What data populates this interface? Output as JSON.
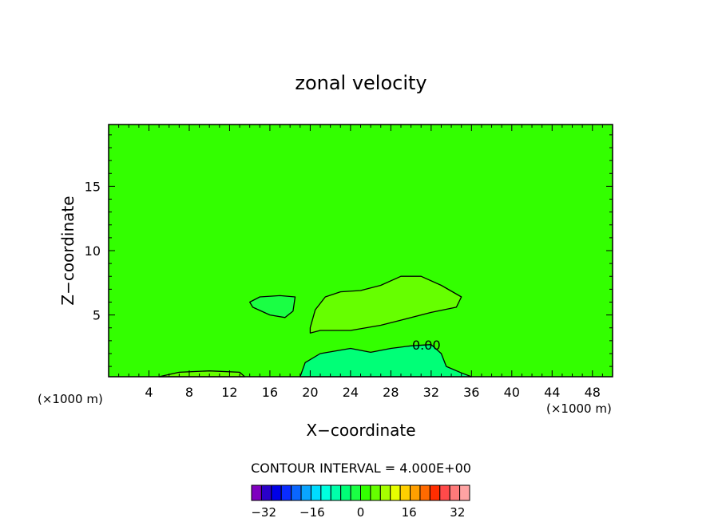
{
  "chart_data": {
    "type": "heatmap",
    "title": "zonal velocity",
    "xlabel": "X−coordinate",
    "ylabel": "Z−coordinate",
    "xlim": [
      0,
      50
    ],
    "ylim": [
      0.2,
      19.8
    ],
    "x_ticks": [
      4,
      8,
      12,
      16,
      20,
      24,
      28,
      32,
      36,
      40,
      44,
      48
    ],
    "y_ticks": [
      5,
      10,
      15
    ],
    "x_unit_left": "(×1000 m)",
    "x_unit_right": "(×1000 m)",
    "background_value": 0,
    "contour_interval_text": "CONTOUR INTERVAL = 4.000E+00",
    "contour_interval": 4,
    "contour_label": "0.00",
    "regions": [
      {
        "name": "positive core aloft",
        "value": 4,
        "color": "#66ff00",
        "points": [
          [
            20,
            4.0
          ],
          [
            20.5,
            5.4
          ],
          [
            21.5,
            6.4
          ],
          [
            23,
            6.8
          ],
          [
            25,
            6.9
          ],
          [
            27,
            7.3
          ],
          [
            29,
            8.0
          ],
          [
            31,
            8.0
          ],
          [
            33,
            7.3
          ],
          [
            35,
            6.4
          ],
          [
            34.5,
            5.6
          ],
          [
            32,
            5.2
          ],
          [
            29,
            4.6
          ],
          [
            27,
            4.2
          ],
          [
            24,
            3.8
          ],
          [
            21,
            3.8
          ],
          [
            20,
            3.6
          ]
        ]
      },
      {
        "name": "negative patch aloft",
        "value": -4,
        "color": "#1aff44",
        "points": [
          [
            14,
            6.0
          ],
          [
            15,
            6.4
          ],
          [
            17,
            6.5
          ],
          [
            18.5,
            6.4
          ],
          [
            18.3,
            5.3
          ],
          [
            17.5,
            4.8
          ],
          [
            16,
            5.0
          ],
          [
            14.3,
            5.6
          ]
        ]
      },
      {
        "name": "negative region near surface",
        "value": -4,
        "color": "#00ff77",
        "points": [
          [
            19,
            0.2
          ],
          [
            19.5,
            1.3
          ],
          [
            21,
            2.0
          ],
          [
            24,
            2.4
          ],
          [
            26,
            2.1
          ],
          [
            28,
            2.4
          ],
          [
            30,
            2.6
          ],
          [
            32,
            2.7
          ],
          [
            33,
            2.0
          ],
          [
            33.5,
            1.0
          ],
          [
            35,
            0.5
          ],
          [
            36,
            0.2
          ]
        ]
      },
      {
        "name": "positive strip near surface",
        "value": 4,
        "color": "#66ff00",
        "points": [
          [
            5,
            0.2
          ],
          [
            7,
            0.55
          ],
          [
            10,
            0.65
          ],
          [
            13,
            0.55
          ],
          [
            13.5,
            0.2
          ]
        ]
      }
    ],
    "colorbar": {
      "tick_labels": [
        "−32",
        "−16",
        "0",
        "16",
        "32"
      ],
      "tick_values": [
        -32,
        -16,
        0,
        16,
        32
      ],
      "range": [
        -36,
        36
      ],
      "colors": [
        "#7f00bf",
        "#2a00c8",
        "#0000e6",
        "#0a2cff",
        "#0a66ff",
        "#0aa5ff",
        "#00dcff",
        "#00ffdf",
        "#00ffaa",
        "#00ff77",
        "#1aff44",
        "#33ff00",
        "#66ff00",
        "#a6ff00",
        "#e6ff00",
        "#ffd000",
        "#ff9f00",
        "#ff6a00",
        "#ff2d00",
        "#ff4a4a",
        "#ff7a7a",
        "#ffa3a3"
      ]
    }
  }
}
